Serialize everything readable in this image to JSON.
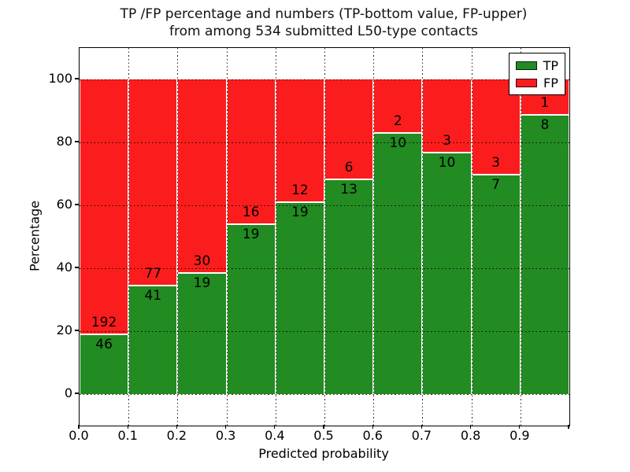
{
  "title": {
    "line1": "TP /FP percentage and numbers (TP-bottom value, FP-upper)",
    "line2": "from among 534 submitted L50-type contacts"
  },
  "chart_data": {
    "type": "bar",
    "subtype": "stacked-100-percent-histogram",
    "title": "TP /FP percentage and numbers (TP-bottom value, FP-upper) from among 534 submitted L50-type contacts",
    "xlabel": "Predicted probability",
    "ylabel": "Percentage",
    "xlim": [
      0.0,
      1.0
    ],
    "ylim": [
      -10,
      110
    ],
    "bin_edges": [
      0.0,
      0.1,
      0.2,
      0.3,
      0.4,
      0.5,
      0.6,
      0.7,
      0.8,
      0.9,
      1.0
    ],
    "x_tick_labels": [
      "0.0",
      "0.1",
      "0.2",
      "0.3",
      "0.4",
      "0.5",
      "0.6",
      "0.7",
      "0.8",
      "0.9"
    ],
    "y_tick_labels": [
      "0",
      "20",
      "40",
      "60",
      "80",
      "100"
    ],
    "y_tick_values": [
      0,
      20,
      40,
      60,
      80,
      100
    ],
    "grid": "dotted black, both axes, drawn over bars",
    "bar_edge_color": "#ffffff",
    "series": [
      {
        "name": "TP",
        "color": "#228b22",
        "counts": [
          46,
          41,
          19,
          19,
          19,
          13,
          10,
          10,
          7,
          8
        ]
      },
      {
        "name": "FP",
        "color": "#fb1d1d",
        "counts": [
          192,
          77,
          30,
          16,
          12,
          6,
          2,
          3,
          3,
          1
        ]
      }
    ],
    "tp_percent_per_bin": [
      19.3,
      34.7,
      38.8,
      54.3,
      61.3,
      68.4,
      83.3,
      76.9,
      70.0,
      88.9
    ],
    "total_contacts": 534,
    "legend": {
      "position": "upper right",
      "entries": [
        "TP",
        "FP"
      ]
    }
  }
}
